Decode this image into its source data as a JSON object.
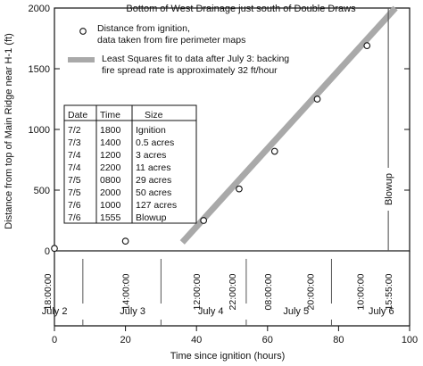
{
  "chart_data": {
    "type": "scatter",
    "title": "Bottom of West Drainage just south of Double Draws",
    "xlabel": "Time since ignition (hours)",
    "ylabel": "Distance from top of Main Ridge near H-1 (ft)",
    "xlim": [
      0,
      100
    ],
    "ylim": [
      0,
      2000
    ],
    "x_ticks": [
      0,
      20,
      40,
      60,
      80,
      100
    ],
    "y_ticks": [
      0,
      500,
      1000,
      1500,
      2000
    ],
    "series": [
      {
        "name": "Distance from ignition, data taken from fire perimeter maps",
        "x": [
          0,
          20,
          42,
          52,
          62,
          74,
          88
        ],
        "y": [
          20,
          80,
          250,
          510,
          820,
          1250,
          1690
        ]
      }
    ],
    "fit_line": {
      "name": "Least Squares fit to data after July 3: backing fire spread rate is approximately 32 ft/hour",
      "x": [
        36,
        96
      ],
      "y": [
        70,
        2000
      ]
    },
    "legend": [
      "Distance from ignition, data taken from fire perimeter maps",
      "Least Squares fit to data after July 3: backing fire spread rate is approximately 32 ft/hour"
    ],
    "annotations": [
      {
        "text": "Blowup",
        "x": 94
      }
    ],
    "time_markers": [
      {
        "x": -2,
        "label": "18:00:00"
      },
      {
        "x": 20,
        "label": "14:00:00"
      },
      {
        "x": 40,
        "label": "12:00:00"
      },
      {
        "x": 50,
        "label": "22:00:00"
      },
      {
        "x": 60,
        "label": "08:00:00"
      },
      {
        "x": 72,
        "label": "20:00:00"
      },
      {
        "x": 86,
        "label": "10:00:00"
      },
      {
        "x": 94,
        "label": "15:55:00"
      }
    ],
    "day_boundaries": [
      8,
      30,
      54,
      78,
      102
    ],
    "day_labels": [
      {
        "x": -4,
        "label": "July 2"
      },
      {
        "x": 18,
        "label": "July 3"
      },
      {
        "x": 40,
        "label": "July 4"
      },
      {
        "x": 64,
        "label": "July 5"
      },
      {
        "x": 88,
        "label": "July 6"
      }
    ],
    "table": {
      "headers": [
        "Date",
        "Time",
        "Size"
      ],
      "rows": [
        [
          "7/2",
          "1800",
          "Ignition"
        ],
        [
          "7/3",
          "1400",
          "0.5 acres"
        ],
        [
          "7/4",
          "1200",
          "3 acres"
        ],
        [
          "7/4",
          "2200",
          "11 acres"
        ],
        [
          "7/5",
          "0800",
          "29 acres"
        ],
        [
          "7/5",
          "2000",
          "50 acres"
        ],
        [
          "7/6",
          "1000",
          "127 acres"
        ],
        [
          "7/6",
          "1555",
          "Blowup"
        ]
      ]
    }
  }
}
